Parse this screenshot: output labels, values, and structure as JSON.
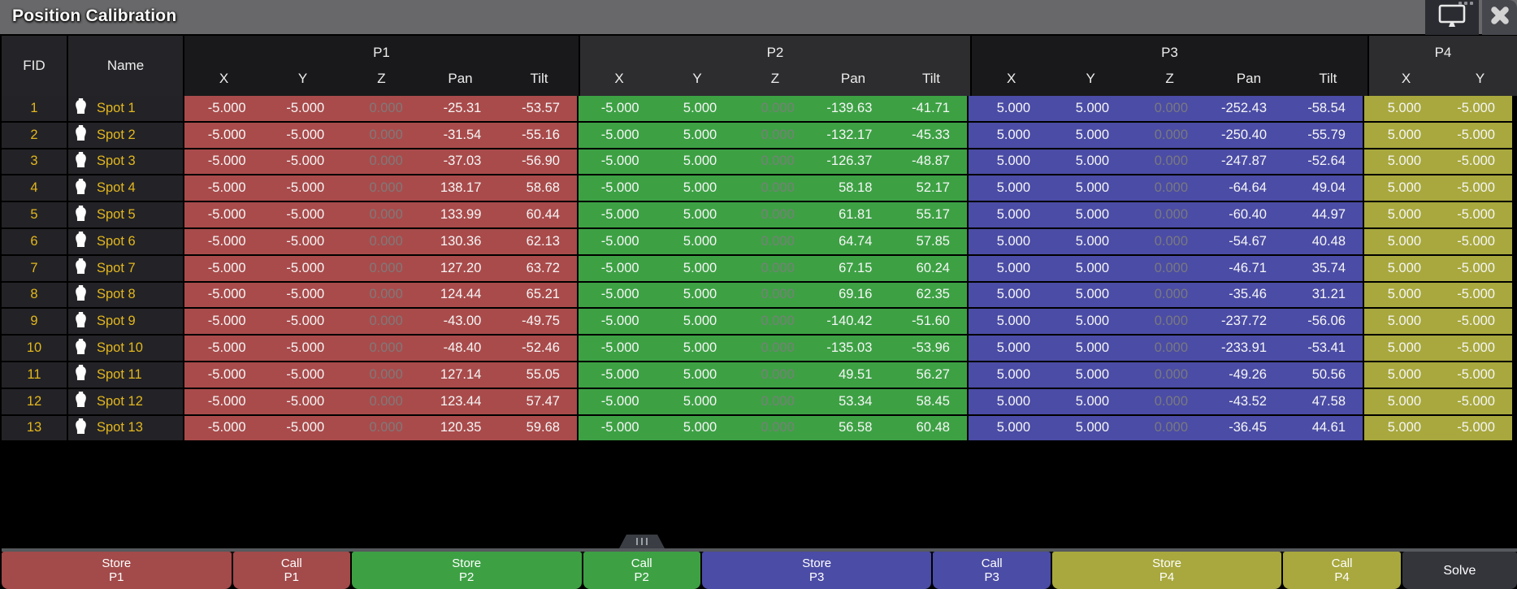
{
  "window": {
    "title": "Position Calibration",
    "titlebar_color": "#68686a"
  },
  "titlebar": {
    "monitor_button": {
      "icon": "monitor-icon",
      "dots_icon": "more-dots-icon"
    },
    "close_button": {
      "icon": "close-icon"
    }
  },
  "table": {
    "headers": {
      "fid": "FID",
      "name": "Name"
    },
    "groups": [
      {
        "label": "P1",
        "columns": [
          "X",
          "Y",
          "Z",
          "Pan",
          "Tilt"
        ],
        "color": "#a94b4b",
        "header_bg": "#19191b"
      },
      {
        "label": "P2",
        "columns": [
          "X",
          "Y",
          "Z",
          "Pan",
          "Tilt"
        ],
        "color": "#3da144",
        "header_bg": "#2d2d2f"
      },
      {
        "label": "P3",
        "columns": [
          "X",
          "Y",
          "Z",
          "Pan",
          "Tilt"
        ],
        "color": "#4b4ca5",
        "header_bg": "#19191b"
      },
      {
        "label": "P4",
        "columns": [
          "X",
          "Y"
        ],
        "color": "#a8a83e",
        "header_bg": "#2d2d2f"
      }
    ],
    "rows": [
      {
        "fid": "1",
        "name": "Spot 1",
        "icon": "fixture-icon",
        "p1": [
          "-5.000",
          "-5.000",
          "0.000",
          "-25.31",
          "-53.57"
        ],
        "p2": [
          "-5.000",
          "5.000",
          "0.000",
          "-139.63",
          "-41.71"
        ],
        "p3": [
          "5.000",
          "5.000",
          "0.000",
          "-252.43",
          "-58.54"
        ],
        "p4": [
          "5.000",
          "-5.000"
        ]
      },
      {
        "fid": "2",
        "name": "Spot 2",
        "icon": "fixture-icon",
        "p1": [
          "-5.000",
          "-5.000",
          "0.000",
          "-31.54",
          "-55.16"
        ],
        "p2": [
          "-5.000",
          "5.000",
          "0.000",
          "-132.17",
          "-45.33"
        ],
        "p3": [
          "5.000",
          "5.000",
          "0.000",
          "-250.40",
          "-55.79"
        ],
        "p4": [
          "5.000",
          "-5.000"
        ]
      },
      {
        "fid": "3",
        "name": "Spot 3",
        "icon": "fixture-icon",
        "p1": [
          "-5.000",
          "-5.000",
          "0.000",
          "-37.03",
          "-56.90"
        ],
        "p2": [
          "-5.000",
          "5.000",
          "0.000",
          "-126.37",
          "-48.87"
        ],
        "p3": [
          "5.000",
          "5.000",
          "0.000",
          "-247.87",
          "-52.64"
        ],
        "p4": [
          "5.000",
          "-5.000"
        ]
      },
      {
        "fid": "4",
        "name": "Spot 4",
        "icon": "fixture-icon",
        "p1": [
          "-5.000",
          "-5.000",
          "0.000",
          "138.17",
          "58.68"
        ],
        "p2": [
          "-5.000",
          "5.000",
          "0.000",
          "58.18",
          "52.17"
        ],
        "p3": [
          "5.000",
          "5.000",
          "0.000",
          "-64.64",
          "49.04"
        ],
        "p4": [
          "5.000",
          "-5.000"
        ]
      },
      {
        "fid": "5",
        "name": "Spot 5",
        "icon": "fixture-icon",
        "p1": [
          "-5.000",
          "-5.000",
          "0.000",
          "133.99",
          "60.44"
        ],
        "p2": [
          "-5.000",
          "5.000",
          "0.000",
          "61.81",
          "55.17"
        ],
        "p3": [
          "5.000",
          "5.000",
          "0.000",
          "-60.40",
          "44.97"
        ],
        "p4": [
          "5.000",
          "-5.000"
        ]
      },
      {
        "fid": "6",
        "name": "Spot 6",
        "icon": "fixture-icon",
        "p1": [
          "-5.000",
          "-5.000",
          "0.000",
          "130.36",
          "62.13"
        ],
        "p2": [
          "-5.000",
          "5.000",
          "0.000",
          "64.74",
          "57.85"
        ],
        "p3": [
          "5.000",
          "5.000",
          "0.000",
          "-54.67",
          "40.48"
        ],
        "p4": [
          "5.000",
          "-5.000"
        ]
      },
      {
        "fid": "7",
        "name": "Spot 7",
        "icon": "fixture-icon",
        "p1": [
          "-5.000",
          "-5.000",
          "0.000",
          "127.20",
          "63.72"
        ],
        "p2": [
          "-5.000",
          "5.000",
          "0.000",
          "67.15",
          "60.24"
        ],
        "p3": [
          "5.000",
          "5.000",
          "0.000",
          "-46.71",
          "35.74"
        ],
        "p4": [
          "5.000",
          "-5.000"
        ]
      },
      {
        "fid": "8",
        "name": "Spot 8",
        "icon": "fixture-icon",
        "p1": [
          "-5.000",
          "-5.000",
          "0.000",
          "124.44",
          "65.21"
        ],
        "p2": [
          "-5.000",
          "5.000",
          "0.000",
          "69.16",
          "62.35"
        ],
        "p3": [
          "5.000",
          "5.000",
          "0.000",
          "-35.46",
          "31.21"
        ],
        "p4": [
          "5.000",
          "-5.000"
        ]
      },
      {
        "fid": "9",
        "name": "Spot 9",
        "icon": "fixture-icon",
        "p1": [
          "-5.000",
          "-5.000",
          "0.000",
          "-43.00",
          "-49.75"
        ],
        "p2": [
          "-5.000",
          "5.000",
          "0.000",
          "-140.42",
          "-51.60"
        ],
        "p3": [
          "5.000",
          "5.000",
          "0.000",
          "-237.72",
          "-56.06"
        ],
        "p4": [
          "5.000",
          "-5.000"
        ]
      },
      {
        "fid": "10",
        "name": "Spot 10",
        "icon": "fixture-icon",
        "p1": [
          "-5.000",
          "-5.000",
          "0.000",
          "-48.40",
          "-52.46"
        ],
        "p2": [
          "-5.000",
          "5.000",
          "0.000",
          "-135.03",
          "-53.96"
        ],
        "p3": [
          "5.000",
          "5.000",
          "0.000",
          "-233.91",
          "-53.41"
        ],
        "p4": [
          "5.000",
          "-5.000"
        ]
      },
      {
        "fid": "11",
        "name": "Spot 11",
        "icon": "fixture-icon",
        "p1": [
          "-5.000",
          "-5.000",
          "0.000",
          "127.14",
          "55.05"
        ],
        "p2": [
          "-5.000",
          "5.000",
          "0.000",
          "49.51",
          "56.27"
        ],
        "p3": [
          "5.000",
          "5.000",
          "0.000",
          "-49.26",
          "50.56"
        ],
        "p4": [
          "5.000",
          "-5.000"
        ]
      },
      {
        "fid": "12",
        "name": "Spot 12",
        "icon": "fixture-icon",
        "p1": [
          "-5.000",
          "-5.000",
          "0.000",
          "123.44",
          "57.47"
        ],
        "p2": [
          "-5.000",
          "5.000",
          "0.000",
          "53.34",
          "58.45"
        ],
        "p3": [
          "5.000",
          "5.000",
          "0.000",
          "-43.52",
          "47.58"
        ],
        "p4": [
          "5.000",
          "-5.000"
        ]
      },
      {
        "fid": "13",
        "name": "Spot 13",
        "icon": "fixture-icon",
        "p1": [
          "-5.000",
          "-5.000",
          "0.000",
          "120.35",
          "59.68"
        ],
        "p2": [
          "-5.000",
          "5.000",
          "0.000",
          "56.58",
          "60.48"
        ],
        "p3": [
          "5.000",
          "5.000",
          "0.000",
          "-36.45",
          "44.61"
        ],
        "p4": [
          "5.000",
          "-5.000"
        ]
      }
    ]
  },
  "footer": {
    "buttons": [
      {
        "id": "store-p1",
        "top": "Store",
        "bottom": "P1",
        "color": "#a34a4a",
        "kind": "store"
      },
      {
        "id": "call-p1",
        "top": "Call",
        "bottom": "P1",
        "color": "#a34a4a",
        "kind": "call"
      },
      {
        "id": "store-p2",
        "top": "Store",
        "bottom": "P2",
        "color": "#3da144",
        "kind": "store"
      },
      {
        "id": "call-p2",
        "top": "Call",
        "bottom": "P2",
        "color": "#3da144",
        "kind": "call"
      },
      {
        "id": "store-p3",
        "top": "Store",
        "bottom": "P3",
        "color": "#4b4ca5",
        "kind": "store"
      },
      {
        "id": "call-p3",
        "top": "Call",
        "bottom": "P3",
        "color": "#4b4ca5",
        "kind": "call"
      },
      {
        "id": "store-p4",
        "top": "Store",
        "bottom": "P4",
        "color": "#a8a83e",
        "kind": "store"
      },
      {
        "id": "call-p4",
        "top": "Call",
        "bottom": "P4",
        "color": "#a8a83e",
        "kind": "call"
      }
    ],
    "solve_label": "Solve"
  },
  "colors": {
    "accent_yellow": "#e3b71e",
    "row_dark_bg": "#232327",
    "p1_red": "#a94b4b",
    "p2_green": "#3da144",
    "p3_blue": "#4b4ca5",
    "p4_olive": "#a8a83e",
    "titlebar_gray": "#68686a"
  }
}
